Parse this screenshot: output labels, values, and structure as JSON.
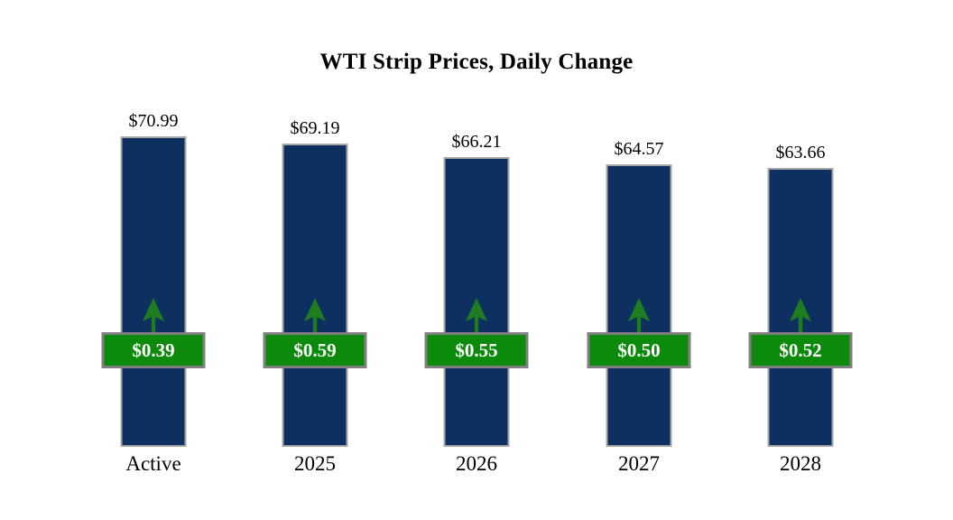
{
  "title": "WTI Strip Prices, Daily Change",
  "chart_data": {
    "type": "bar",
    "title": "WTI Strip Prices, Daily Change",
    "categories": [
      "Active",
      "2025",
      "2026",
      "2027",
      "2028"
    ],
    "values": [
      70.99,
      69.19,
      66.21,
      64.57,
      63.66
    ],
    "price_labels": [
      "$70.99",
      "$69.19",
      "$66.21",
      "$64.57",
      "$63.66"
    ],
    "daily_changes": [
      0.39,
      0.59,
      0.55,
      0.5,
      0.52
    ],
    "change_labels": [
      "$0.39",
      "$0.59",
      "$0.55",
      "$0.50",
      "$0.52"
    ],
    "change_direction": "up",
    "xlabel": "",
    "ylabel": "",
    "ylim": [
      0,
      73
    ],
    "grid": false,
    "legend": false,
    "axes_visible": false
  },
  "icons": {
    "up_arrow": "up-arrow-icon"
  },
  "colors": {
    "background": "#FFFFFF",
    "bar_fill": "#0D3060",
    "bar_border": "#A6A6A6",
    "badge_fill": "#0C8A0C",
    "badge_border": "#808080",
    "badge_text": "#FFFFFF",
    "arrow_green": "#1E7D1E",
    "text": "#000000"
  }
}
